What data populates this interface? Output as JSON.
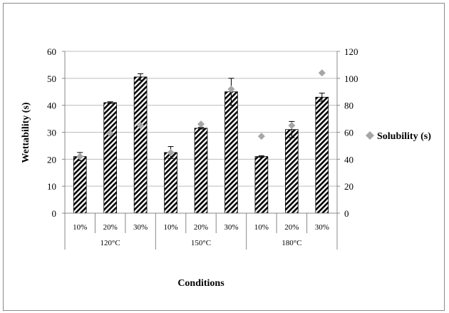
{
  "chart_data": {
    "type": "bar",
    "xlabel": "Conditions",
    "ylabel": "Wettability  (s)",
    "ylim": [
      0,
      60
    ],
    "yticks": [
      0,
      10,
      20,
      30,
      40,
      50,
      60
    ],
    "y2lim": [
      0,
      120
    ],
    "y2ticks": [
      0,
      20,
      40,
      60,
      80,
      100,
      120
    ],
    "groups": [
      "120°C",
      "150°C",
      "180°C"
    ],
    "categories": [
      "10%",
      "20%",
      "30%",
      "10%",
      "20%",
      "30%",
      "10%",
      "20%",
      "30%"
    ],
    "grid": "horizontal",
    "legend_position": "right",
    "series": [
      {
        "type": "bar",
        "axis": "left",
        "pattern": "diagonal-hatch",
        "values": [
          21,
          41,
          50.5,
          22.5,
          31.5,
          45,
          21,
          31,
          43
        ],
        "errors": [
          1.5,
          0.3,
          1.2,
          2.2,
          0.3,
          5,
          0.3,
          3,
          1.5
        ]
      },
      {
        "type": "scatter",
        "axis": "right",
        "name": "Solubility (s)",
        "marker": "diamond",
        "color": "#a6a6a6",
        "values": [
          42,
          59,
          65,
          45,
          66,
          92,
          57,
          65,
          104
        ]
      }
    ]
  }
}
